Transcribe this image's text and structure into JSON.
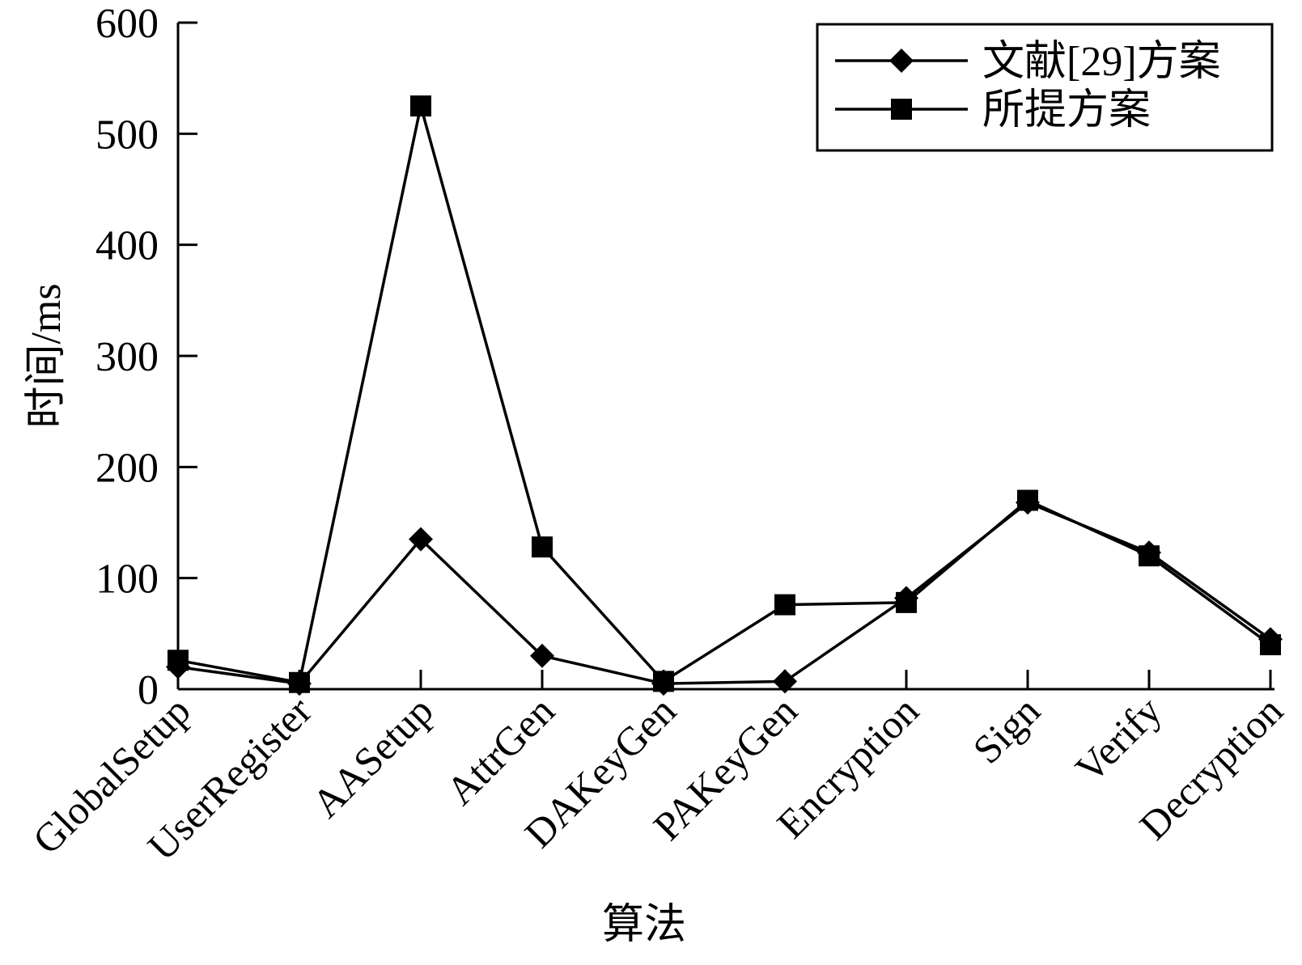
{
  "chart_data": {
    "type": "line",
    "title": "",
    "xlabel": "算法",
    "ylabel": "时间/ms",
    "ylim": [
      0,
      600
    ],
    "yticks": [
      0,
      100,
      200,
      300,
      400,
      500,
      600
    ],
    "grid": false,
    "legend_position": "top-right",
    "categories": [
      "GlobalSetup",
      "UserRegister",
      "AASetup",
      "AttrGen",
      "DAKeyGen",
      "PAKeyGen",
      "Encryption",
      "Sign",
      "Verify",
      "Decryption"
    ],
    "series": [
      {
        "name": "文献[29]方案",
        "marker": "diamond",
        "color": "#000000",
        "values": [
          20,
          5,
          135,
          30,
          5,
          7,
          82,
          168,
          123,
          45
        ]
      },
      {
        "name": "所提方案",
        "marker": "square",
        "color": "#000000",
        "values": [
          26,
          6,
          525,
          128,
          7,
          76,
          78,
          170,
          120,
          40
        ]
      }
    ]
  }
}
